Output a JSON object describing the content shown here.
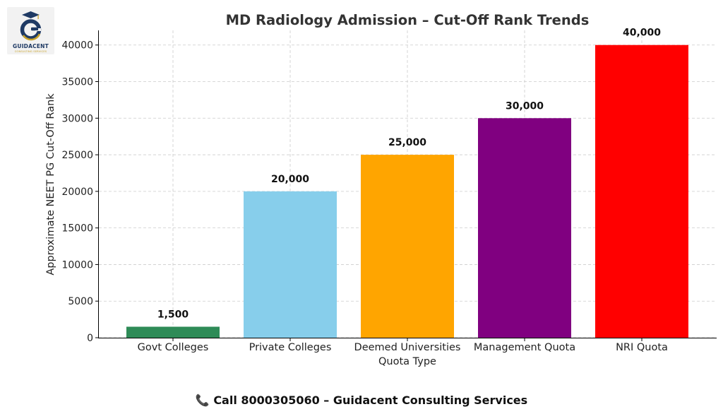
{
  "logo": {
    "icon": "graduation-cap-g-icon",
    "name": "GUIDACENT",
    "tagline": "CONSULTING SERVICES"
  },
  "footer": {
    "icon": "phone-icon",
    "text": "Call 8000305060 – Guidacent Consulting Services"
  },
  "chart_data": {
    "type": "bar",
    "title": "MD Radiology Admission – Cut-Off Rank Trends",
    "xlabel": "Quota Type",
    "ylabel": "Approximate NEET PG Cut-Off Rank",
    "categories": [
      "Govt Colleges",
      "Private Colleges",
      "Deemed Universities",
      "Management Quota",
      "NRI Quota"
    ],
    "values": [
      1500,
      20000,
      25000,
      30000,
      40000
    ],
    "value_labels": [
      "1,500",
      "20,000",
      "25,000",
      "30,000",
      "40,000"
    ],
    "colors": [
      "#2e8b57",
      "#87ceeb",
      "#ffa500",
      "#800080",
      "#ff0000"
    ],
    "ylim": [
      0,
      42000
    ],
    "yticks": [
      0,
      5000,
      10000,
      15000,
      20000,
      25000,
      30000,
      35000,
      40000
    ],
    "grid": true
  }
}
